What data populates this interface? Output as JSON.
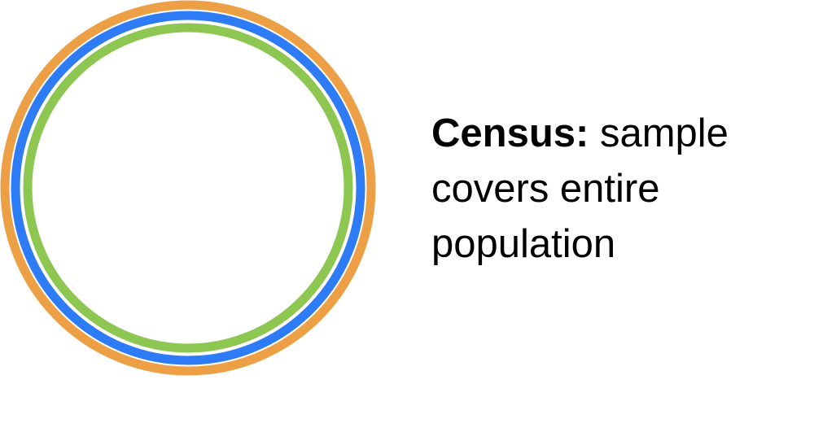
{
  "caption": {
    "term": "Census:",
    "line1_rest": " sample",
    "line2": "covers entire",
    "line3": "population"
  },
  "colors": {
    "outer_ring": "#ED9F45",
    "middle_ring": "#2E7BF6",
    "inner_ring": "#8DC752",
    "text": "#000000"
  }
}
